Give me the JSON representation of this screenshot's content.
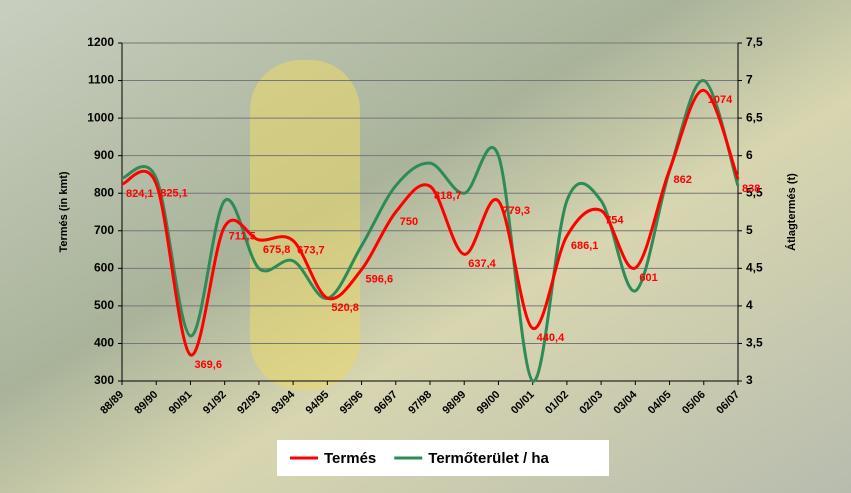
{
  "chart_data": {
    "type": "line",
    "categories": [
      "88/89",
      "89/90",
      "90/91",
      "91/92",
      "92/93",
      "93/94",
      "94/95",
      "95/96",
      "96/97",
      "97/98",
      "98/99",
      "99/00",
      "00/01",
      "01/02",
      "02/03",
      "03/04",
      "04/05",
      "05/06",
      "06/07"
    ],
    "y_label": "Termés (in kmt)",
    "y2_label": "Átlagtermés (t)",
    "ylim": [
      300,
      1200
    ],
    "yticks": [
      300,
      400,
      500,
      600,
      700,
      800,
      900,
      1000,
      1100,
      1200
    ],
    "y2lim": [
      3,
      7.5
    ],
    "y2ticks": [
      3,
      {
        "value": 3.5,
        "label": "3,5"
      },
      4,
      {
        "value": 4.5,
        "label": "4,5"
      },
      5,
      {
        "value": 5.5,
        "label": "5,5"
      },
      6,
      {
        "value": 6.5,
        "label": "6,5"
      },
      7,
      {
        "value": 7.5,
        "label": "7,5"
      }
    ],
    "grid": true,
    "legend": "bottom",
    "series": [
      {
        "name": "Termés",
        "color": "#ff0000",
        "axis": "y",
        "values": [
          824.1,
          825.1,
          369.6,
          711.5,
          675.8,
          673.7,
          520.8,
          596.6,
          750,
          818.7,
          637.4,
          779.3,
          440.4,
          686.1,
          754,
          601,
          862,
          1074,
          838
        ],
        "value_labels": [
          "824,1",
          "825,1",
          "369,6",
          "711,5",
          "675,8",
          "673,7",
          "520,8",
          "596,6",
          "750",
          "818,7",
          "637,4",
          "779,3",
          "440,4",
          "686,1",
          "754",
          "601",
          "862",
          "1074",
          "838"
        ]
      },
      {
        "name": "Termőterület / ha",
        "color": "#2e8b57",
        "axis": "y2",
        "values": [
          5.7,
          5.7,
          3.6,
          5.4,
          4.5,
          4.6,
          4.1,
          4.8,
          5.6,
          5.9,
          5.5,
          6.0,
          3.0,
          5.4,
          5.4,
          4.2,
          5.8,
          7.0,
          5.6
        ]
      }
    ]
  }
}
